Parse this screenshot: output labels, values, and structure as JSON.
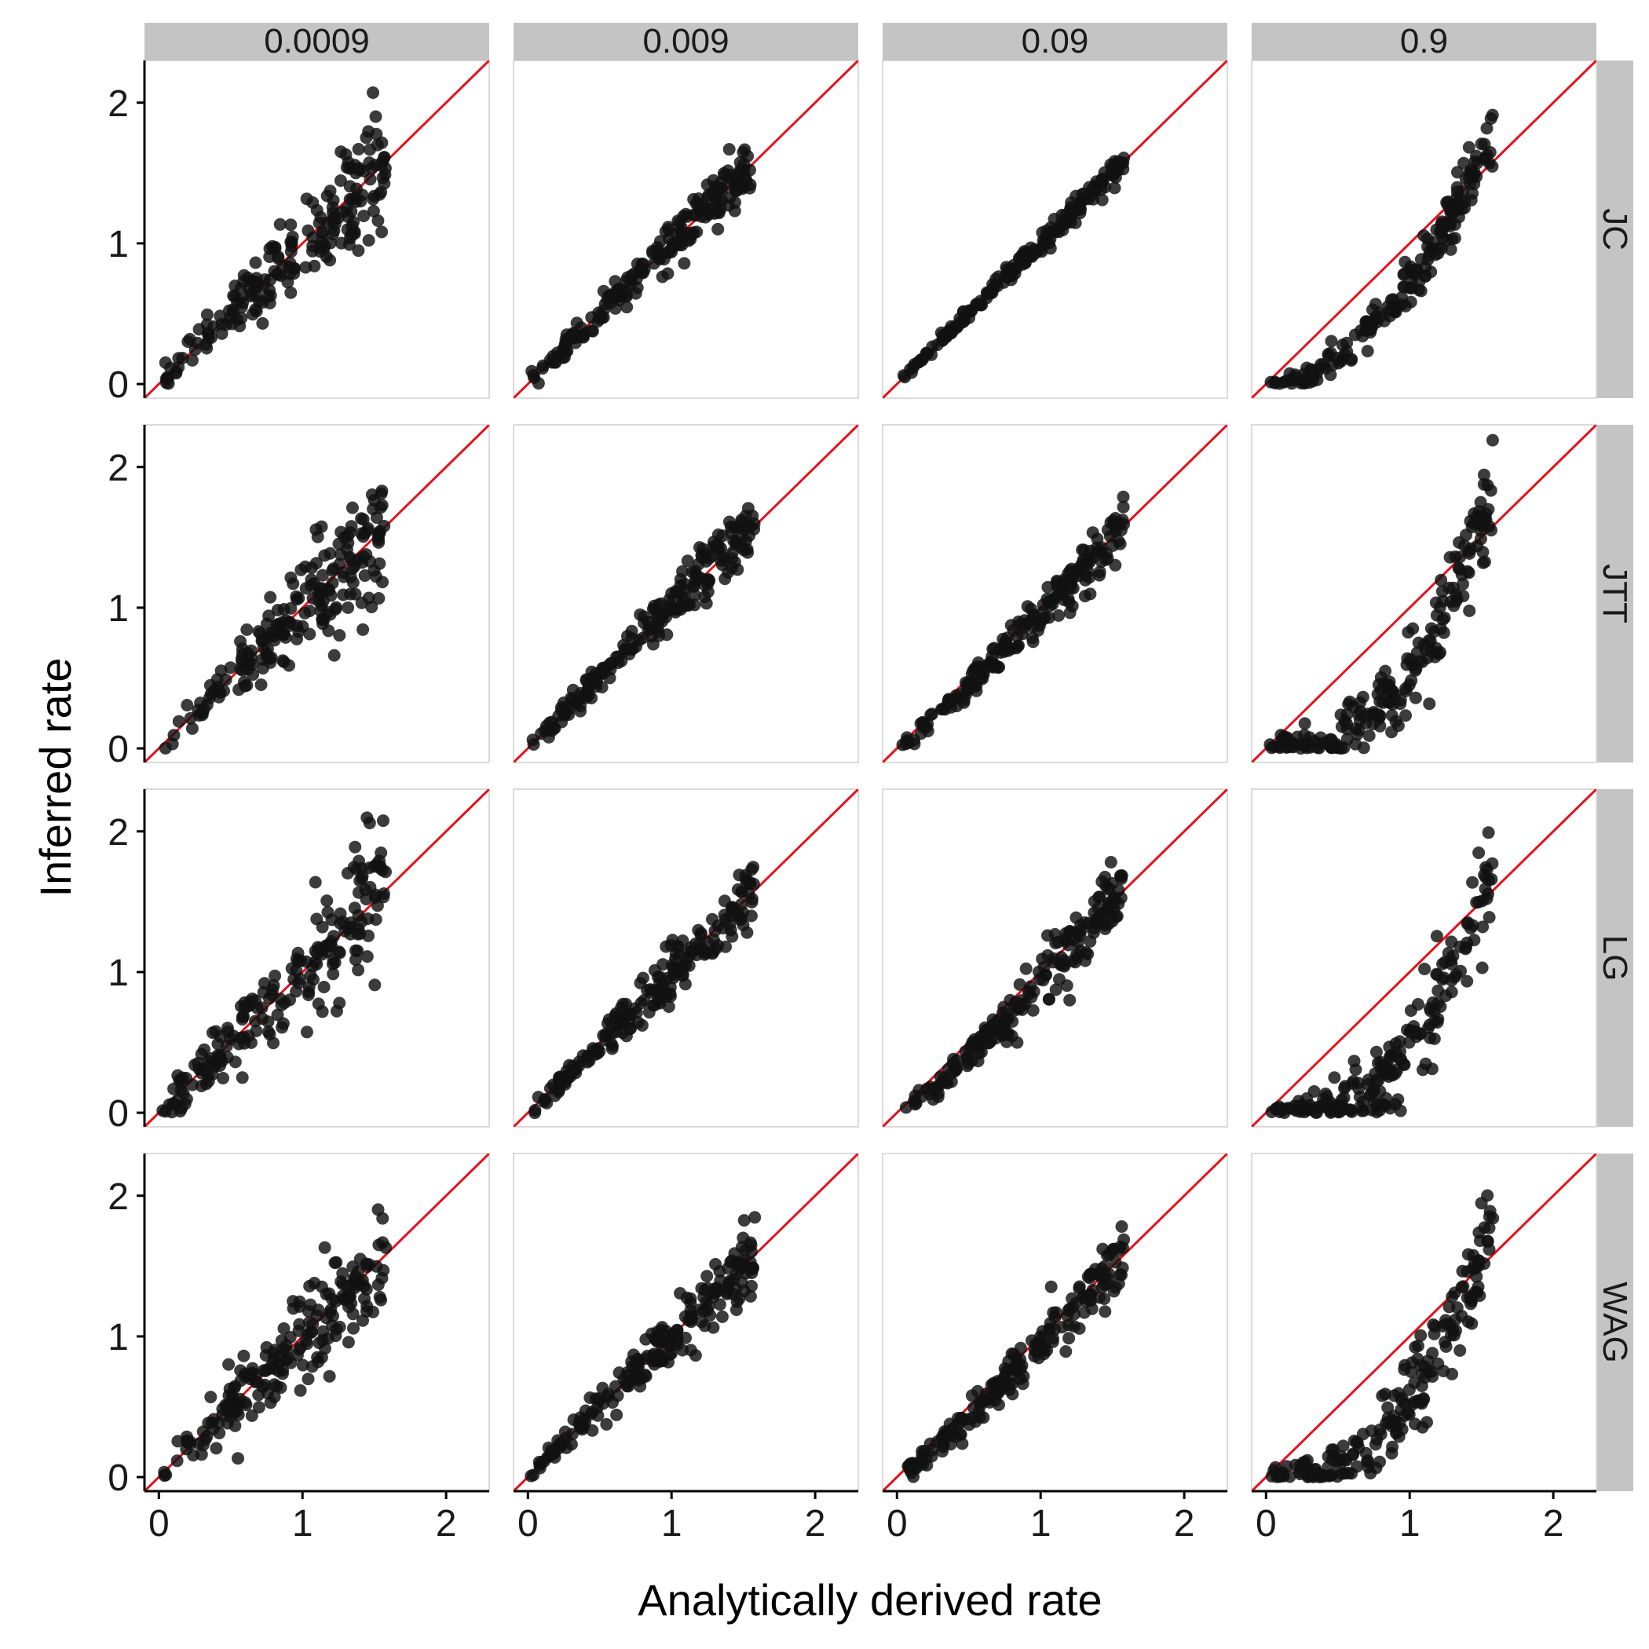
{
  "chart_data": {
    "type": "scatter",
    "layout": "facet_grid",
    "xlabel": "Analytically derived rate",
    "ylabel": "Inferred rate",
    "xlim": [
      -0.1,
      2.3
    ],
    "ylim": [
      -0.1,
      2.3
    ],
    "x_ticks": [
      0,
      1,
      2
    ],
    "y_ticks": [
      0,
      1,
      2
    ],
    "columns": [
      "0.0009",
      "0.009",
      "0.09",
      "0.9"
    ],
    "rows": [
      "JC",
      "JTT",
      "LG",
      "WAG"
    ],
    "reference_line": {
      "slope": 1,
      "intercept": 0,
      "color": "#e8101a"
    },
    "point_color": "#111111",
    "strip_color": "#c4c4c4",
    "n_points_per_panel": 200,
    "panel_trends": {
      "JC": {
        "0.0009": {
          "power": 1.0,
          "spread": 0.15
        },
        "0.009": {
          "power": 1.0,
          "spread": 0.075
        },
        "0.09": {
          "power": 1.0,
          "spread": 0.035
        },
        "0.9": {
          "power": 2.0,
          "spread": 0.08
        }
      },
      "JTT": {
        "0.0009": {
          "power": 1.0,
          "spread": 0.17
        },
        "0.009": {
          "power": 1.0,
          "spread": 0.09
        },
        "0.09": {
          "power": 1.1,
          "spread": 0.07
        },
        "0.9": {
          "power": 2.6,
          "spread": 0.14
        }
      },
      "LG": {
        "0.0009": {
          "power": 1.0,
          "spread": 0.19
        },
        "0.009": {
          "power": 1.05,
          "spread": 0.1
        },
        "0.09": {
          "power": 1.2,
          "spread": 0.09
        },
        "0.9": {
          "power": 3.0,
          "spread": 0.15
        }
      },
      "WAG": {
        "0.0009": {
          "power": 1.0,
          "spread": 0.18
        },
        "0.009": {
          "power": 1.0,
          "spread": 0.09
        },
        "0.09": {
          "power": 1.15,
          "spread": 0.09
        },
        "0.9": {
          "power": 2.6,
          "spread": 0.13
        }
      }
    }
  }
}
